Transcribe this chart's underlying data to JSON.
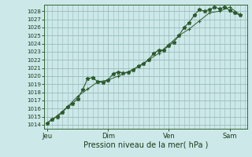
{
  "xlabel": "Pression niveau de la mer( hPa )",
  "bg_color": "#cce8e8",
  "grid_color": "#99bbbb",
  "line_color": "#2d5a2d",
  "ylim": [
    1013.5,
    1028.8
  ],
  "yticks": [
    1014,
    1015,
    1016,
    1017,
    1018,
    1019,
    1020,
    1021,
    1022,
    1023,
    1024,
    1025,
    1026,
    1027,
    1028
  ],
  "day_positions": [
    0,
    3,
    6,
    9
  ],
  "day_labels": [
    "Jeu",
    "Dim",
    "Ven",
    "Sam"
  ],
  "series1_x": [
    0.0,
    0.25,
    0.5,
    0.75,
    1.0,
    1.25,
    1.5,
    1.75,
    2.0,
    2.25,
    2.5,
    2.75,
    3.0,
    3.25,
    3.5,
    3.75,
    4.0,
    4.25,
    4.5,
    4.75,
    5.0,
    5.25,
    5.5,
    5.75,
    6.0,
    6.25,
    6.5,
    6.75,
    7.0,
    7.25,
    7.5,
    7.75,
    8.0,
    8.25,
    8.5,
    8.75,
    9.0,
    9.25,
    9.5
  ],
  "series1_y": [
    1014.2,
    1014.7,
    1015.0,
    1015.5,
    1016.2,
    1016.6,
    1017.2,
    1018.3,
    1019.7,
    1019.8,
    1019.3,
    1019.2,
    1019.5,
    1020.3,
    1020.5,
    1020.4,
    1020.5,
    1020.8,
    1021.2,
    1021.5,
    1022.0,
    1022.8,
    1023.2,
    1023.2,
    1023.8,
    1024.2,
    1025.0,
    1026.0,
    1026.6,
    1027.5,
    1028.2,
    1028.0,
    1028.2,
    1028.5,
    1028.3,
    1028.5,
    1028.1,
    1027.8,
    1027.5
  ],
  "series2_x": [
    0.0,
    0.5,
    1.0,
    1.5,
    2.0,
    2.5,
    3.0,
    3.5,
    4.0,
    4.5,
    5.0,
    5.5,
    6.0,
    6.5,
    7.0,
    7.5,
    8.0,
    8.5,
    9.0,
    9.5
  ],
  "series2_y": [
    1014.2,
    1015.1,
    1016.2,
    1017.5,
    1018.4,
    1019.3,
    1019.5,
    1020.0,
    1020.5,
    1021.2,
    1022.0,
    1022.8,
    1023.9,
    1025.0,
    1025.8,
    1026.8,
    1027.8,
    1028.0,
    1028.5,
    1027.6
  ],
  "xlim": [
    -0.15,
    9.85
  ]
}
